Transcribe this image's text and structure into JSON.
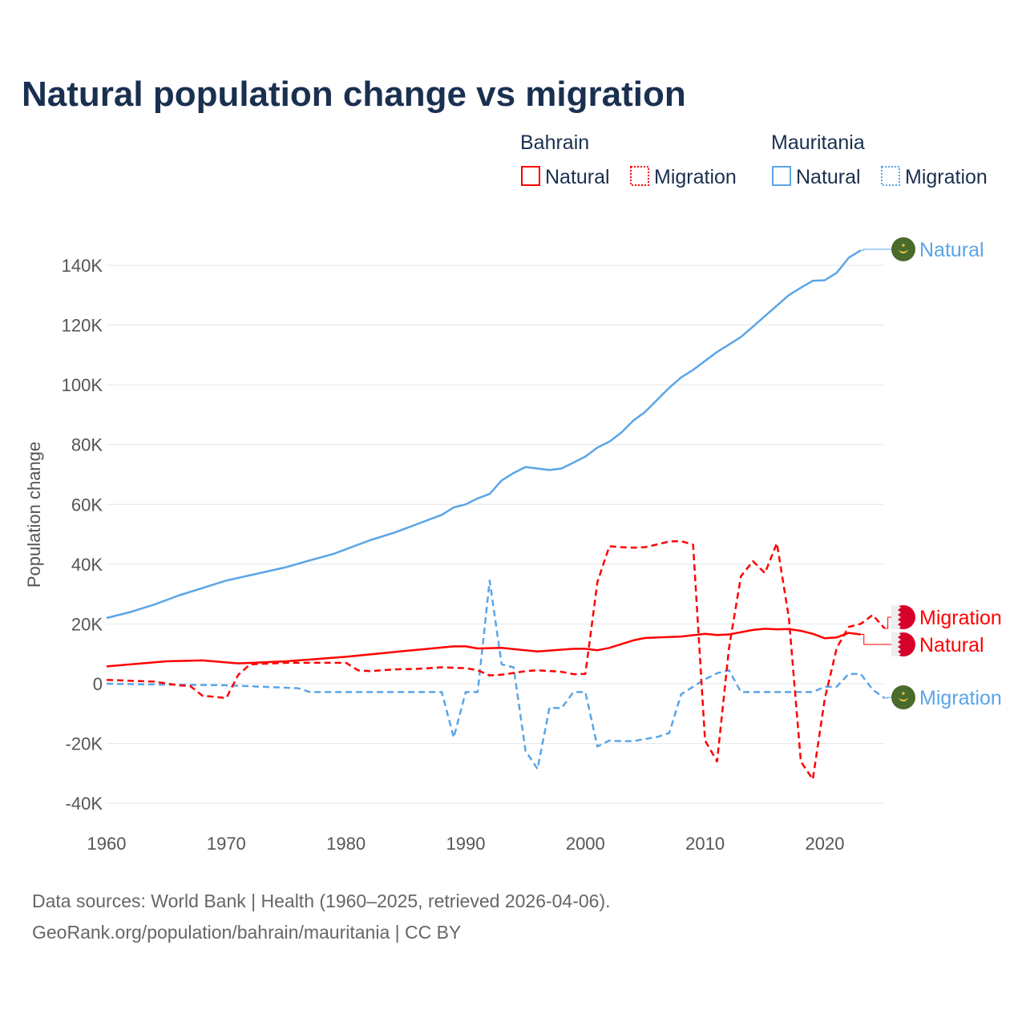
{
  "chart_data": {
    "type": "line",
    "title": "Natural population change vs migration",
    "xlabel": "",
    "ylabel": "Population change",
    "xlim": [
      1960,
      2025
    ],
    "ylim": [
      -40,
      150
    ],
    "y_unit": "thousands",
    "grid": true,
    "x_ticks": [
      1960,
      1970,
      1980,
      1990,
      2000,
      2010,
      2020
    ],
    "x_tick_labels": [
      "1960",
      "1970",
      "1980",
      "1990",
      "2000",
      "2010",
      "2020"
    ],
    "y_ticks": [
      -40,
      -20,
      0,
      20,
      40,
      60,
      80,
      100,
      120,
      140
    ],
    "y_tick_labels": [
      "-40K",
      "-20K",
      "0",
      "20K",
      "40K",
      "60K",
      "80K",
      "100K",
      "120K",
      "140K"
    ],
    "legend": {
      "placement": "top-right",
      "groups": [
        {
          "country": "Bahrain",
          "items": [
            "Natural",
            "Migration"
          ]
        },
        {
          "country": "Mauritania",
          "items": [
            "Natural",
            "Migration"
          ]
        }
      ]
    },
    "series": [
      {
        "name": "Mauritania Natural",
        "country": "Mauritania",
        "kind": "Natural",
        "color": "#5aa5e8",
        "dash": false,
        "end_label": "Natural",
        "points": [
          [
            1960,
            22
          ],
          [
            1962,
            24
          ],
          [
            1964,
            26.5
          ],
          [
            1966,
            29.5
          ],
          [
            1968,
            32
          ],
          [
            1970,
            34.5
          ],
          [
            1972,
            36.3
          ],
          [
            1975,
            39
          ],
          [
            1977,
            41.3
          ],
          [
            1979,
            43.5
          ],
          [
            1980,
            45
          ],
          [
            1982,
            48
          ],
          [
            1984,
            50.5
          ],
          [
            1986,
            53.5
          ],
          [
            1988,
            56.5
          ],
          [
            1989,
            59
          ],
          [
            1990,
            60
          ],
          [
            1991,
            62
          ],
          [
            1992,
            63.5
          ],
          [
            1993,
            68
          ],
          [
            1994,
            70.5
          ],
          [
            1995,
            72.5
          ],
          [
            1996,
            72
          ],
          [
            1997,
            71.5
          ],
          [
            1998,
            72
          ],
          [
            1999,
            74
          ],
          [
            2000,
            76
          ],
          [
            2001,
            79
          ],
          [
            2002,
            81
          ],
          [
            2003,
            84
          ],
          [
            2004,
            88
          ],
          [
            2005,
            91
          ],
          [
            2006,
            95
          ],
          [
            2007,
            99
          ],
          [
            2008,
            102.5
          ],
          [
            2009,
            105
          ],
          [
            2010,
            108
          ],
          [
            2011,
            111
          ],
          [
            2012,
            113.5
          ],
          [
            2013,
            116
          ],
          [
            2014,
            119.5
          ],
          [
            2015,
            123
          ],
          [
            2016,
            126.5
          ],
          [
            2017,
            130
          ],
          [
            2018,
            132.5
          ],
          [
            2019,
            134.8
          ],
          [
            2020,
            135
          ],
          [
            2021,
            137.5
          ],
          [
            2022,
            142.5
          ],
          [
            2023,
            145
          ]
        ]
      },
      {
        "name": "Mauritania Migration",
        "country": "Mauritania",
        "kind": "Migration",
        "color": "#5aa5e8",
        "dash": true,
        "end_label": "Migration",
        "points": [
          [
            1960,
            0
          ],
          [
            1965,
            -0.3
          ],
          [
            1970,
            -0.5
          ],
          [
            1976,
            -1.5
          ],
          [
            1977,
            -2.8
          ],
          [
            1988,
            -2.8
          ],
          [
            1989,
            -18
          ],
          [
            1990,
            -2.8
          ],
          [
            1991,
            -2.8
          ],
          [
            1992,
            34.5
          ],
          [
            1993,
            6.5
          ],
          [
            1994,
            5.5
          ],
          [
            1995,
            -22.5
          ],
          [
            1996,
            -28.5
          ],
          [
            1997,
            -8
          ],
          [
            1998,
            -8.2
          ],
          [
            1999,
            -2.8
          ],
          [
            2000,
            -2.8
          ],
          [
            2001,
            -21
          ],
          [
            2002,
            -19
          ],
          [
            2003,
            -19.2
          ],
          [
            2004,
            -19.2
          ],
          [
            2005,
            -18.5
          ],
          [
            2006,
            -17.8
          ],
          [
            2007,
            -16.5
          ],
          [
            2008,
            -3.5
          ],
          [
            2009,
            -1
          ],
          [
            2010,
            1.5
          ],
          [
            2011,
            3.5
          ],
          [
            2012,
            4.5
          ],
          [
            2013,
            -2.8
          ],
          [
            2019,
            -2.8
          ],
          [
            2020,
            -1
          ],
          [
            2021,
            -1
          ],
          [
            2022,
            3.3
          ],
          [
            2023,
            3.3
          ],
          [
            2024,
            -2
          ],
          [
            2025,
            -4.8
          ]
        ]
      },
      {
        "name": "Bahrain Natural",
        "country": "Bahrain",
        "kind": "Natural",
        "color": "#ff0000",
        "dash": false,
        "end_label": "Natural",
        "points": [
          [
            1960,
            5.8
          ],
          [
            1965,
            7.5
          ],
          [
            1968,
            7.8
          ],
          [
            1971,
            6.8
          ],
          [
            1975,
            7.5
          ],
          [
            1980,
            9
          ],
          [
            1985,
            11
          ],
          [
            1989,
            12.5
          ],
          [
            1990,
            12.5
          ],
          [
            1991,
            11.8
          ],
          [
            1993,
            12
          ],
          [
            1996,
            10.8
          ],
          [
            1999,
            11.7
          ],
          [
            2000,
            11.7
          ],
          [
            2001,
            11.2
          ],
          [
            2002,
            12
          ],
          [
            2004,
            14.5
          ],
          [
            2005,
            15.3
          ],
          [
            2008,
            15.8
          ],
          [
            2010,
            16.7
          ],
          [
            2011,
            16.3
          ],
          [
            2012,
            16.5
          ],
          [
            2014,
            18
          ],
          [
            2015,
            18.4
          ],
          [
            2016,
            18.2
          ],
          [
            2017,
            18.3
          ],
          [
            2018,
            17.7
          ],
          [
            2019,
            16.7
          ],
          [
            2020,
            15.2
          ],
          [
            2021,
            15.5
          ],
          [
            2022,
            17
          ],
          [
            2023,
            16.5
          ]
        ]
      },
      {
        "name": "Bahrain Migration",
        "country": "Bahrain",
        "kind": "Migration",
        "color": "#ff0000",
        "dash": true,
        "end_label": "Migration",
        "points": [
          [
            1960,
            1.3
          ],
          [
            1964,
            0.7
          ],
          [
            1966,
            -0.5
          ],
          [
            1967,
            -0.8
          ],
          [
            1968,
            -4
          ],
          [
            1970,
            -4.8
          ],
          [
            1971,
            3
          ],
          [
            1972,
            6.5
          ],
          [
            1975,
            7
          ],
          [
            1980,
            7
          ],
          [
            1981,
            4.5
          ],
          [
            1982,
            4.2
          ],
          [
            1984,
            4.8
          ],
          [
            1986,
            5
          ],
          [
            1988,
            5.5
          ],
          [
            1990,
            5.2
          ],
          [
            1991,
            4.5
          ],
          [
            1992,
            2.8
          ],
          [
            1993,
            3
          ],
          [
            1995,
            4.2
          ],
          [
            1996,
            4.5
          ],
          [
            1998,
            4
          ],
          [
            1999,
            3.2
          ],
          [
            2000,
            3.3
          ],
          [
            2001,
            34
          ],
          [
            2002,
            46
          ],
          [
            2003,
            45.7
          ],
          [
            2004,
            45.5
          ],
          [
            2005,
            45.7
          ],
          [
            2006,
            46.6
          ],
          [
            2007,
            47.6
          ],
          [
            2008,
            47.7
          ],
          [
            2009,
            46.5
          ],
          [
            2010,
            -19
          ],
          [
            2011,
            -26
          ],
          [
            2012,
            12
          ],
          [
            2013,
            36
          ],
          [
            2014,
            41
          ],
          [
            2015,
            37
          ],
          [
            2016,
            47
          ],
          [
            2017,
            22
          ],
          [
            2018,
            -26
          ],
          [
            2019,
            -32
          ],
          [
            2020,
            -5
          ],
          [
            2021,
            12
          ],
          [
            2022,
            19
          ],
          [
            2023,
            20
          ],
          [
            2024,
            23
          ],
          [
            2025,
            18.5
          ]
        ]
      }
    ]
  },
  "colors": {
    "bahrain": "#ff0000",
    "mauritania": "#5aa5e8",
    "title": "#1a3050"
  },
  "source_line1": "Data sources: World Bank | Health (1960–2025, retrieved 2026-04-06).",
  "source_line2": "GeoRank.org/population/bahrain/mauritania | CC BY"
}
